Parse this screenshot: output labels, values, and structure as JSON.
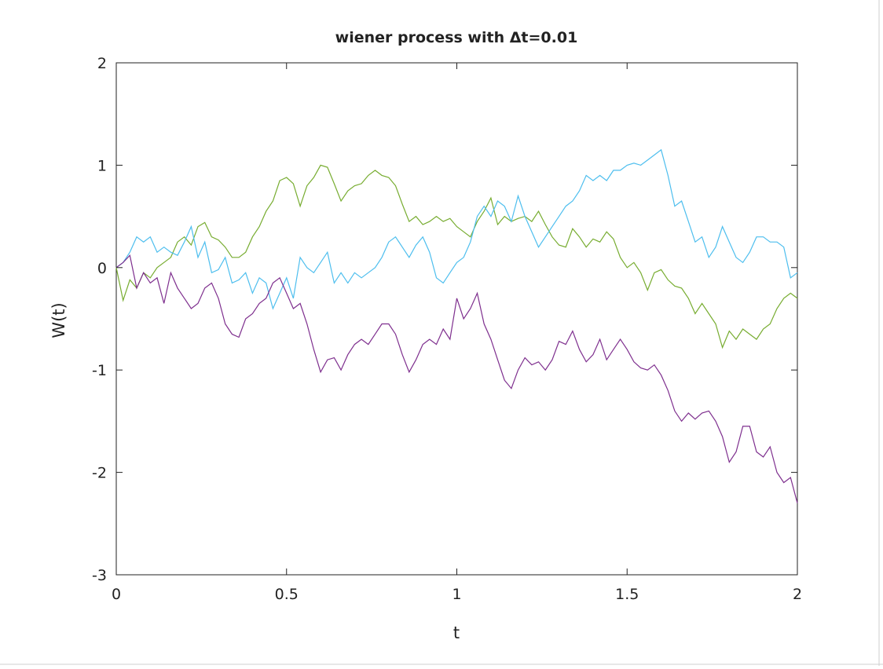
{
  "chart_data": {
    "type": "line",
    "title": "wiener process with Δt=0.01",
    "xlabel": "t",
    "ylabel": "W(t)",
    "xlim": [
      0,
      2
    ],
    "ylim": [
      -3,
      2
    ],
    "x_ticks": [
      0,
      0.5,
      1,
      1.5,
      2
    ],
    "x_tick_labels": [
      "0",
      "0.5",
      "1",
      "1.5",
      "2"
    ],
    "y_ticks": [
      -3,
      -2,
      -1,
      0,
      1,
      2
    ],
    "y_tick_labels": [
      "-3",
      "-2",
      "-1",
      "0",
      "1",
      "2"
    ],
    "grid": false,
    "legend": false,
    "series": [
      {
        "color": "#77ac30",
        "x": [
          0,
          0.02,
          0.04,
          0.06,
          0.08,
          0.1,
          0.12,
          0.14,
          0.16,
          0.18,
          0.2,
          0.22,
          0.24,
          0.26,
          0.28,
          0.3,
          0.32,
          0.34,
          0.36,
          0.38,
          0.4,
          0.42,
          0.44,
          0.46,
          0.48,
          0.5,
          0.52,
          0.54,
          0.56,
          0.58,
          0.6,
          0.62,
          0.64,
          0.66,
          0.68,
          0.7,
          0.72,
          0.74,
          0.76,
          0.78,
          0.8,
          0.82,
          0.84,
          0.86,
          0.88,
          0.9,
          0.92,
          0.94,
          0.96,
          0.98,
          1.0,
          1.02,
          1.04,
          1.06,
          1.08,
          1.1,
          1.12,
          1.14,
          1.16,
          1.18,
          1.2,
          1.22,
          1.24,
          1.26,
          1.28,
          1.3,
          1.32,
          1.34,
          1.36,
          1.38,
          1.4,
          1.42,
          1.44,
          1.46,
          1.48,
          1.5,
          1.52,
          1.54,
          1.56,
          1.58,
          1.6,
          1.62,
          1.64,
          1.66,
          1.68,
          1.7,
          1.72,
          1.74,
          1.76,
          1.78,
          1.8,
          1.82,
          1.84,
          1.86,
          1.88,
          1.9,
          1.92,
          1.94,
          1.96,
          1.98,
          2.0
        ],
        "values": [
          0,
          -0.32,
          -0.12,
          -0.2,
          -0.05,
          -0.1,
          0.0,
          0.05,
          0.1,
          0.25,
          0.3,
          0.22,
          0.4,
          0.44,
          0.3,
          0.27,
          0.2,
          0.1,
          0.1,
          0.15,
          0.3,
          0.4,
          0.55,
          0.65,
          0.85,
          0.88,
          0.82,
          0.6,
          0.8,
          0.88,
          1.0,
          0.98,
          0.82,
          0.65,
          0.75,
          0.8,
          0.82,
          0.9,
          0.95,
          0.9,
          0.88,
          0.8,
          0.62,
          0.45,
          0.5,
          0.42,
          0.45,
          0.5,
          0.45,
          0.48,
          0.4,
          0.35,
          0.3,
          0.45,
          0.55,
          0.68,
          0.42,
          0.5,
          0.45,
          0.48,
          0.5,
          0.45,
          0.55,
          0.42,
          0.3,
          0.22,
          0.2,
          0.38,
          0.3,
          0.2,
          0.28,
          0.25,
          0.35,
          0.28,
          0.1,
          0.0,
          0.05,
          -0.05,
          -0.22,
          -0.05,
          -0.02,
          -0.12,
          -0.18,
          -0.2,
          -0.3,
          -0.45,
          -0.35,
          -0.45,
          -0.55,
          -0.78,
          -0.62,
          -0.7,
          -0.6,
          -0.65,
          -0.7,
          -0.6,
          -0.55,
          -0.4,
          -0.3,
          -0.25,
          -0.3
        ]
      },
      {
        "color": "#4dbeee",
        "x": [
          0,
          0.02,
          0.04,
          0.06,
          0.08,
          0.1,
          0.12,
          0.14,
          0.16,
          0.18,
          0.2,
          0.22,
          0.24,
          0.26,
          0.28,
          0.3,
          0.32,
          0.34,
          0.36,
          0.38,
          0.4,
          0.42,
          0.44,
          0.46,
          0.48,
          0.5,
          0.52,
          0.54,
          0.56,
          0.58,
          0.6,
          0.62,
          0.64,
          0.66,
          0.68,
          0.7,
          0.72,
          0.74,
          0.76,
          0.78,
          0.8,
          0.82,
          0.84,
          0.86,
          0.88,
          0.9,
          0.92,
          0.94,
          0.96,
          0.98,
          1.0,
          1.02,
          1.04,
          1.06,
          1.08,
          1.1,
          1.12,
          1.14,
          1.16,
          1.18,
          1.2,
          1.22,
          1.24,
          1.26,
          1.28,
          1.3,
          1.32,
          1.34,
          1.36,
          1.38,
          1.4,
          1.42,
          1.44,
          1.46,
          1.48,
          1.5,
          1.52,
          1.54,
          1.56,
          1.58,
          1.6,
          1.62,
          1.64,
          1.66,
          1.68,
          1.7,
          1.72,
          1.74,
          1.76,
          1.78,
          1.8,
          1.82,
          1.84,
          1.86,
          1.88,
          1.9,
          1.92,
          1.94,
          1.96,
          1.98,
          2.0
        ],
        "values": [
          0,
          0.05,
          0.15,
          0.3,
          0.25,
          0.3,
          0.15,
          0.2,
          0.15,
          0.12,
          0.25,
          0.4,
          0.1,
          0.25,
          -0.05,
          -0.02,
          0.1,
          -0.15,
          -0.12,
          -0.05,
          -0.25,
          -0.1,
          -0.15,
          -0.4,
          -0.25,
          -0.1,
          -0.3,
          0.1,
          0.0,
          -0.05,
          0.05,
          0.15,
          -0.15,
          -0.05,
          -0.15,
          -0.05,
          -0.1,
          -0.05,
          0.0,
          0.1,
          0.25,
          0.3,
          0.2,
          0.1,
          0.22,
          0.3,
          0.15,
          -0.1,
          -0.15,
          -0.05,
          0.05,
          0.1,
          0.25,
          0.5,
          0.6,
          0.5,
          0.65,
          0.6,
          0.45,
          0.7,
          0.5,
          0.35,
          0.2,
          0.3,
          0.4,
          0.5,
          0.6,
          0.65,
          0.75,
          0.9,
          0.85,
          0.9,
          0.85,
          0.95,
          0.95,
          1.0,
          1.02,
          1.0,
          1.05,
          1.1,
          1.15,
          0.9,
          0.6,
          0.65,
          0.45,
          0.25,
          0.3,
          0.1,
          0.2,
          0.4,
          0.25,
          0.1,
          0.05,
          0.15,
          0.3,
          0.3,
          0.25,
          0.25,
          0.2,
          -0.1,
          -0.05
        ]
      },
      {
        "color": "#7e2f8e",
        "x": [
          0,
          0.02,
          0.04,
          0.06,
          0.08,
          0.1,
          0.12,
          0.14,
          0.16,
          0.18,
          0.2,
          0.22,
          0.24,
          0.26,
          0.28,
          0.3,
          0.32,
          0.34,
          0.36,
          0.38,
          0.4,
          0.42,
          0.44,
          0.46,
          0.48,
          0.5,
          0.52,
          0.54,
          0.56,
          0.58,
          0.6,
          0.62,
          0.64,
          0.66,
          0.68,
          0.7,
          0.72,
          0.74,
          0.76,
          0.78,
          0.8,
          0.82,
          0.84,
          0.86,
          0.88,
          0.9,
          0.92,
          0.94,
          0.96,
          0.98,
          1.0,
          1.02,
          1.04,
          1.06,
          1.08,
          1.1,
          1.12,
          1.14,
          1.16,
          1.18,
          1.2,
          1.22,
          1.24,
          1.26,
          1.28,
          1.3,
          1.32,
          1.34,
          1.36,
          1.38,
          1.4,
          1.42,
          1.44,
          1.46,
          1.48,
          1.5,
          1.52,
          1.54,
          1.56,
          1.58,
          1.6,
          1.62,
          1.64,
          1.66,
          1.68,
          1.7,
          1.72,
          1.74,
          1.76,
          1.78,
          1.8,
          1.82,
          1.84,
          1.86,
          1.88,
          1.9,
          1.92,
          1.94,
          1.96,
          1.98,
          2.0
        ],
        "values": [
          0,
          0.05,
          0.12,
          -0.2,
          -0.05,
          -0.15,
          -0.1,
          -0.35,
          -0.05,
          -0.2,
          -0.3,
          -0.4,
          -0.35,
          -0.2,
          -0.15,
          -0.3,
          -0.55,
          -0.65,
          -0.68,
          -0.5,
          -0.45,
          -0.35,
          -0.3,
          -0.15,
          -0.1,
          -0.25,
          -0.4,
          -0.35,
          -0.55,
          -0.8,
          -1.02,
          -0.9,
          -0.88,
          -1.0,
          -0.85,
          -0.75,
          -0.7,
          -0.75,
          -0.65,
          -0.55,
          -0.55,
          -0.65,
          -0.85,
          -1.02,
          -0.9,
          -0.75,
          -0.7,
          -0.75,
          -0.6,
          -0.7,
          -0.3,
          -0.5,
          -0.4,
          -0.25,
          -0.55,
          -0.7,
          -0.9,
          -1.1,
          -1.18,
          -1.0,
          -0.88,
          -0.95,
          -0.92,
          -1.0,
          -0.9,
          -0.72,
          -0.75,
          -0.62,
          -0.8,
          -0.92,
          -0.85,
          -0.7,
          -0.9,
          -0.8,
          -0.7,
          -0.8,
          -0.92,
          -0.98,
          -1.0,
          -0.95,
          -1.05,
          -1.2,
          -1.4,
          -1.5,
          -1.42,
          -1.48,
          -1.42,
          -1.4,
          -1.5,
          -1.65,
          -1.9,
          -1.8,
          -1.55,
          -1.55,
          -1.8,
          -1.85,
          -1.75,
          -2.0,
          -2.1,
          -2.05,
          -2.3
        ]
      }
    ]
  }
}
